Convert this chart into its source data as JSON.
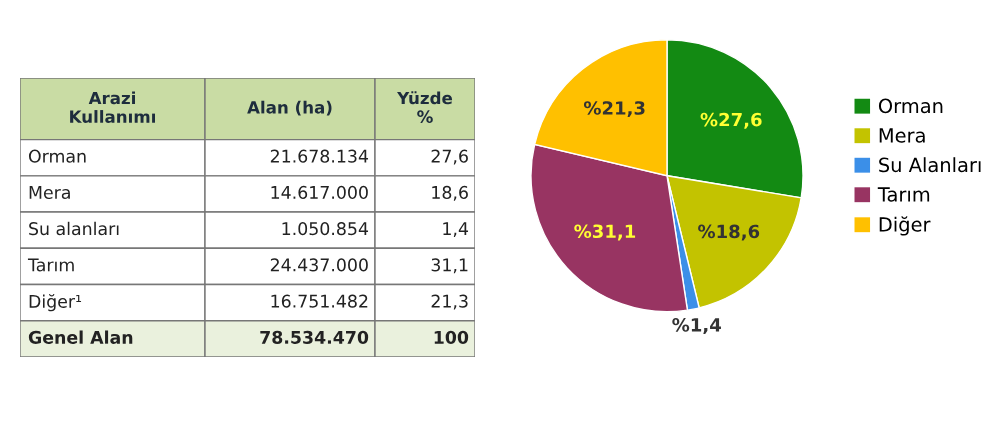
{
  "chart_data": [
    {
      "type": "other",
      "annotations": [
        "Arazi Kullanımı"
      ],
      "categories": [
        "Orman",
        "Mera",
        "Su alanları",
        "Tarım",
        "Diğer¹",
        "Genel Alan"
      ],
      "series": [
        {
          "name": "Alan (ha)",
          "colors": [
            "#ffffff",
            "#ffffff",
            "#ffffff",
            "#ffffff",
            "#ffffff",
            "#eaf1dd"
          ],
          "values": [
            21678134,
            14617000,
            1050854,
            24437000,
            16751482,
            78534470
          ],
          "value_labels": [
            "21.678.134",
            "14.617.000",
            "1.050.854",
            "24.437.000",
            "16.751.482",
            "78.534.470"
          ]
        },
        {
          "name": "Yüzde %",
          "colors": [
            "#ffffff",
            "#ffffff",
            "#ffffff",
            "#ffffff",
            "#ffffff",
            "#eaf1dd"
          ],
          "values": [
            27.6,
            18.6,
            1.4,
            31.1,
            21.3,
            100
          ],
          "value_labels": [
            "27,6",
            "18,6",
            "1,4",
            "31,1",
            "21,3",
            "100"
          ]
        }
      ]
    },
    {
      "type": "pie",
      "categories": [
        "Orman",
        "Mera",
        "Su Alanları",
        "Tarım",
        "Diğer"
      ],
      "values": [
        27.6,
        18.6,
        1.4,
        31.1,
        21.3
      ],
      "colors": [
        "#138a13",
        "#c3c300",
        "#3b8fe8",
        "#983462",
        "#ffc000"
      ],
      "value_labels": [
        "%27,6",
        "%18,6",
        "%1,4",
        "%31,1",
        "%21,3"
      ],
      "legend": "right"
    }
  ]
}
